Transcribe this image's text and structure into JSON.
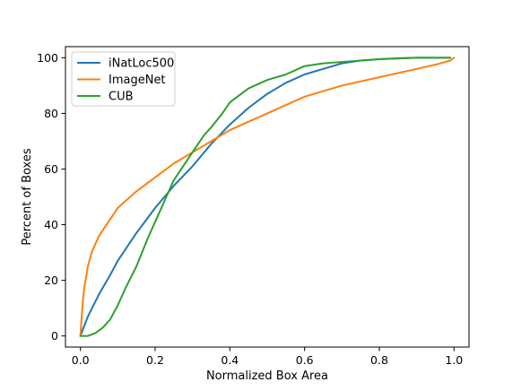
{
  "chart_data": {
    "type": "line",
    "title": "",
    "xlabel": "Normalized Box Area",
    "ylabel": "Percent of Boxes",
    "xlim": [
      -0.04,
      1.04
    ],
    "ylim": [
      -4,
      104
    ],
    "xticks": [
      "0.0",
      "0.2",
      "0.4",
      "0.6",
      "0.8",
      "1.0"
    ],
    "xtick_values": [
      0.0,
      0.2,
      0.4,
      0.6,
      0.8,
      1.0
    ],
    "yticks": [
      "0",
      "20",
      "40",
      "60",
      "80",
      "100"
    ],
    "ytick_values": [
      0,
      20,
      40,
      60,
      80,
      100
    ],
    "grid": false,
    "legend_position": "top-left",
    "series": [
      {
        "name": "iNatLoc500",
        "color": "#1f77b4",
        "x": [
          0.0,
          0.02,
          0.05,
          0.08,
          0.1,
          0.13,
          0.15,
          0.2,
          0.25,
          0.3,
          0.35,
          0.4,
          0.45,
          0.5,
          0.55,
          0.6,
          0.65,
          0.7,
          0.75,
          0.8,
          0.85,
          0.9,
          0.95,
          0.99
        ],
        "y": [
          0,
          7,
          15,
          22,
          27,
          33,
          37,
          46,
          54,
          61,
          69,
          76,
          82,
          87,
          91,
          94,
          96,
          98,
          99,
          99.5,
          99.8,
          100,
          100,
          100
        ]
      },
      {
        "name": "ImageNet",
        "color": "#ff7f0e",
        "x": [
          0.0,
          0.005,
          0.01,
          0.02,
          0.03,
          0.05,
          0.08,
          0.1,
          0.15,
          0.2,
          0.25,
          0.3,
          0.35,
          0.4,
          0.5,
          0.6,
          0.7,
          0.8,
          0.9,
          0.95,
          0.99,
          1.0
        ],
        "y": [
          0,
          10,
          17,
          25,
          30,
          36,
          42,
          46,
          52,
          57,
          62,
          66,
          70,
          74,
          80,
          86,
          90,
          93,
          96,
          97.5,
          99,
          100
        ]
      },
      {
        "name": "CUB",
        "color": "#2ca02c",
        "x": [
          0.0,
          0.02,
          0.04,
          0.06,
          0.08,
          0.1,
          0.12,
          0.15,
          0.18,
          0.2,
          0.23,
          0.25,
          0.28,
          0.3,
          0.33,
          0.35,
          0.38,
          0.4,
          0.45,
          0.5,
          0.55,
          0.6,
          0.65,
          0.7,
          0.8,
          0.9,
          0.99
        ],
        "y": [
          0,
          0,
          1,
          3,
          6,
          11,
          17,
          25,
          35,
          41,
          50,
          56,
          62,
          66,
          72,
          75,
          80,
          84,
          89,
          92,
          94,
          97,
          98,
          98.5,
          99.5,
          100,
          100
        ]
      }
    ]
  }
}
